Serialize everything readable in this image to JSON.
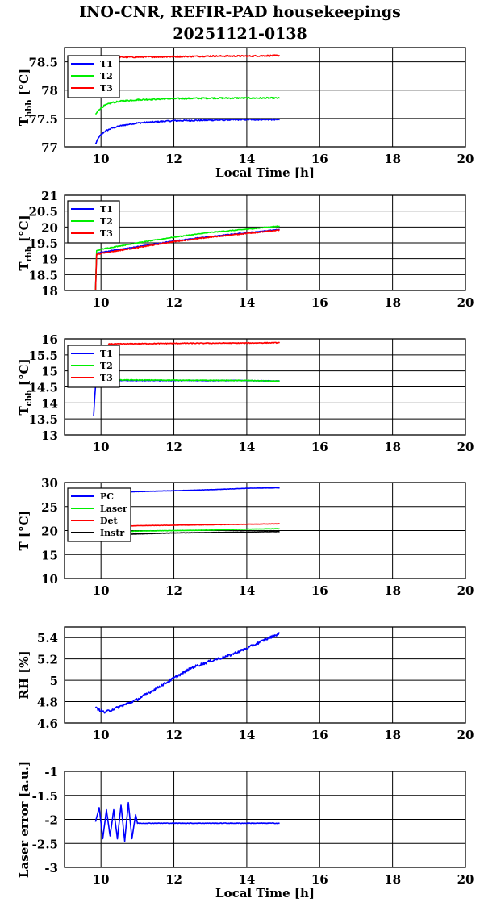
{
  "title_line1": "INO-CNR, REFIR-PAD housekeepings",
  "title_line2": "20251121-0138",
  "colors": {
    "blue": "#0000ff",
    "green": "#00ee00",
    "red": "#ff0000",
    "black": "#000000"
  },
  "chart_data": [
    {
      "type": "line",
      "ylabel_main": "T",
      "ylabel_sub": "hbb",
      "ylabel_unit": "[°C]",
      "xlabel": "Local Time [h]",
      "xlim": [
        9,
        20
      ],
      "ylim": [
        77,
        78.75
      ],
      "xticks": [
        10,
        12,
        14,
        16,
        18,
        20
      ],
      "yticks": [
        77,
        77.5,
        78,
        78.5
      ],
      "ytick_labels": [
        "77",
        "77.5",
        "78",
        "78.5"
      ],
      "grid": true,
      "legend": "top-left",
      "series": [
        {
          "name": "T1",
          "color": "blue",
          "noise": 0.012,
          "x": [
            9.85,
            9.95,
            10.1,
            10.3,
            10.6,
            11,
            11.5,
            12,
            13,
            14,
            14.9
          ],
          "y": [
            77.05,
            77.18,
            77.27,
            77.33,
            77.38,
            77.42,
            77.44,
            77.46,
            77.47,
            77.48,
            77.48
          ]
        },
        {
          "name": "T2",
          "color": "green",
          "noise": 0.012,
          "x": [
            9.85,
            9.95,
            10.1,
            10.3,
            10.6,
            11,
            11.5,
            12,
            13,
            14,
            14.9
          ],
          "y": [
            77.57,
            77.66,
            77.73,
            77.78,
            77.81,
            77.83,
            77.84,
            77.85,
            77.86,
            77.86,
            77.86
          ]
        },
        {
          "name": "T3",
          "color": "red",
          "noise": 0.012,
          "x": [
            9.85,
            10.5,
            12,
            13,
            14,
            14.9
          ],
          "y": [
            78.57,
            78.58,
            78.59,
            78.6,
            78.6,
            78.61
          ]
        }
      ]
    },
    {
      "type": "line",
      "ylabel_main": "T",
      "ylabel_sub": "rbb",
      "ylabel_unit": "[°C]",
      "xlabel": "",
      "xlim": [
        9,
        20
      ],
      "ylim": [
        18,
        21
      ],
      "xticks": [
        10,
        12,
        14,
        16,
        18,
        20
      ],
      "yticks": [
        18,
        18.5,
        19,
        19.5,
        20,
        20.5,
        21
      ],
      "ytick_labels": [
        "18",
        "18.5",
        "19",
        "19.5",
        "20",
        "20.5",
        "21"
      ],
      "grid": true,
      "legend": "top-left",
      "series": [
        {
          "name": "T1",
          "color": "blue",
          "noise": 0.012,
          "x": [
            9.85,
            9.88,
            10,
            11,
            12,
            13,
            14,
            14.9
          ],
          "y": [
            18.0,
            19.17,
            19.2,
            19.38,
            19.56,
            19.7,
            19.82,
            19.92
          ]
        },
        {
          "name": "T2",
          "color": "green",
          "noise": 0.012,
          "x": [
            9.85,
            9.88,
            10,
            11,
            12,
            13,
            14,
            14.9
          ],
          "y": [
            18.0,
            19.25,
            19.3,
            19.5,
            19.68,
            19.83,
            19.93,
            20.03
          ]
        },
        {
          "name": "T3",
          "color": "red",
          "noise": 0.015,
          "x": [
            9.85,
            9.88,
            10,
            11,
            12,
            13,
            14,
            14.9
          ],
          "y": [
            18.0,
            19.13,
            19.17,
            19.35,
            19.54,
            19.68,
            19.8,
            19.9
          ]
        }
      ]
    },
    {
      "type": "line",
      "ylabel_main": "T",
      "ylabel_sub": "cbb",
      "ylabel_unit": "[°C]",
      "xlabel": "",
      "xlim": [
        9,
        20
      ],
      "ylim": [
        13,
        16
      ],
      "xticks": [
        10,
        12,
        14,
        16,
        18,
        20
      ],
      "yticks": [
        13,
        13.5,
        14,
        14.5,
        15,
        15.5,
        16
      ],
      "ytick_labels": [
        "13",
        "13.5",
        "14",
        "14.5",
        "15",
        "15.5",
        "16"
      ],
      "grid": true,
      "legend": "top-left",
      "series": [
        {
          "name": "T1",
          "color": "blue",
          "noise": 0.01,
          "x": [
            9.8,
            9.83,
            9.86,
            10,
            12,
            14,
            14.9
          ],
          "y": [
            13.6,
            14.2,
            14.68,
            14.7,
            14.7,
            14.7,
            14.68
          ]
        },
        {
          "name": "T2",
          "color": "green",
          "noise": 0.01,
          "x": [
            9.86,
            10,
            12,
            14,
            14.9
          ],
          "y": [
            14.7,
            14.72,
            14.71,
            14.7,
            14.68
          ]
        },
        {
          "name": "T3",
          "color": "red",
          "noise": 0.012,
          "x": [
            10.2,
            11,
            12,
            14,
            14.9
          ],
          "y": [
            15.84,
            15.85,
            15.86,
            15.87,
            15.88
          ]
        }
      ]
    },
    {
      "type": "line",
      "ylabel_main": "T [°C]",
      "ylabel_sub": "",
      "ylabel_unit": "",
      "xlabel": "",
      "xlim": [
        9,
        20
      ],
      "ylim": [
        10,
        30
      ],
      "xticks": [
        10,
        12,
        14,
        16,
        18,
        20
      ],
      "yticks": [
        10,
        15,
        20,
        25,
        30
      ],
      "ytick_labels": [
        "10",
        "15",
        "20",
        "25",
        "30"
      ],
      "grid": true,
      "legend": "top-left",
      "series": [
        {
          "name": "PC",
          "color": "blue",
          "noise": 0.03,
          "x": [
            9.85,
            10.5,
            12,
            13,
            14,
            14.9
          ],
          "y": [
            27.7,
            28.0,
            28.3,
            28.5,
            28.8,
            28.9
          ]
        },
        {
          "name": "Laser",
          "color": "green",
          "noise": 0.03,
          "x": [
            9.85,
            11,
            12,
            13,
            14,
            14.9
          ],
          "y": [
            19.6,
            19.9,
            20.0,
            20.1,
            20.3,
            20.4
          ]
        },
        {
          "name": "Det",
          "color": "red",
          "noise": 0.03,
          "x": [
            9.85,
            11,
            12,
            13,
            14,
            14.9
          ],
          "y": [
            20.8,
            21.0,
            21.1,
            21.2,
            21.3,
            21.4
          ]
        },
        {
          "name": "Instr",
          "color": "black",
          "noise": 0.03,
          "x": [
            9.85,
            11,
            12,
            13,
            14,
            14.9
          ],
          "y": [
            19.0,
            19.3,
            19.5,
            19.6,
            19.7,
            19.8
          ]
        }
      ]
    },
    {
      "type": "line",
      "ylabel_main": "RH [%]",
      "ylabel_sub": "",
      "ylabel_unit": "",
      "xlabel": "",
      "xlim": [
        9,
        20
      ],
      "ylim": [
        4.6,
        5.5
      ],
      "xticks": [
        10,
        12,
        14,
        16,
        18,
        20
      ],
      "yticks": [
        4.6,
        4.8,
        5,
        5.2,
        5.4
      ],
      "ytick_labels": [
        "4.6",
        "4.8",
        "5",
        "5.2",
        "5.4"
      ],
      "grid": true,
      "legend": "none",
      "series": [
        {
          "name": "",
          "color": "blue",
          "noise": 0.012,
          "x": [
            9.85,
            10.1,
            10.5,
            11,
            11.5,
            12,
            12.5,
            13,
            13.5,
            14,
            14.5,
            14.9
          ],
          "y": [
            4.74,
            4.7,
            4.75,
            4.82,
            4.92,
            5.02,
            5.12,
            5.18,
            5.23,
            5.3,
            5.38,
            5.44
          ]
        }
      ]
    },
    {
      "type": "line",
      "ylabel_main": "Laser error [a.u.]",
      "ylabel_sub": "",
      "ylabel_unit": "",
      "xlabel": "Local Time [h]",
      "xlim": [
        9,
        20
      ],
      "ylim": [
        -3,
        -1
      ],
      "xticks": [
        10,
        12,
        14,
        16,
        18,
        20
      ],
      "yticks": [
        -3,
        -2.5,
        -2,
        -1.5,
        -1
      ],
      "ytick_labels": [
        "-3",
        "-2.5",
        "-2",
        "-1.5",
        "-1"
      ],
      "grid": true,
      "legend": "none",
      "series": [
        {
          "name": "",
          "color": "blue",
          "noise": 0.006,
          "x": [
            9.85,
            9.95,
            10.05,
            10.15,
            10.25,
            10.35,
            10.45,
            10.55,
            10.65,
            10.75,
            10.85,
            10.95,
            11.0,
            12,
            13,
            14,
            14.9
          ],
          "y": [
            -2.05,
            -1.75,
            -2.4,
            -1.8,
            -2.35,
            -1.8,
            -2.4,
            -1.7,
            -2.45,
            -1.65,
            -2.4,
            -1.9,
            -2.08,
            -2.08,
            -2.08,
            -2.08,
            -2.08
          ]
        }
      ]
    }
  ]
}
